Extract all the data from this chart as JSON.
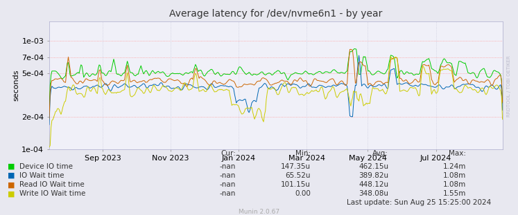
{
  "title": "Average latency for /dev/nvme6n1 - by year",
  "ylabel": "seconds",
  "outer_bg": "#e8e8f0",
  "plot_bg": "#f0f0f8",
  "grid_color_h": "#ff9999",
  "grid_color_v": "#ccccdd",
  "colors": {
    "device_io": "#00cc00",
    "io_wait": "#0066b3",
    "read_io_wait": "#cc6600",
    "write_io_wait": "#cccc00"
  },
  "ymin": 0.0001,
  "ymax": 0.0015,
  "yticks": [
    0.0001,
    0.0002,
    0.0005,
    0.0007,
    0.001
  ],
  "legend": [
    {
      "label": "Device IO time",
      "color": "#00cc00"
    },
    {
      "label": "IO Wait time",
      "color": "#0066b3"
    },
    {
      "label": "Read IO Wait time",
      "color": "#cc6600"
    },
    {
      "label": "Write IO Wait time",
      "color": "#cccc00"
    }
  ],
  "stats": [
    {
      "cur": "-nan",
      "min": "147.35u",
      "avg": "462.15u",
      "max": "1.24m"
    },
    {
      "cur": "-nan",
      "min": "65.52u",
      "avg": "389.82u",
      "max": "1.08m"
    },
    {
      "cur": "-nan",
      "min": "101.15u",
      "avg": "448.12u",
      "max": "1.08m"
    },
    {
      "cur": "-nan",
      "min": "0.00",
      "avg": "348.08u",
      "max": "1.55m"
    }
  ],
  "last_update": "Last update: Sun Aug 25 15:25:00 2024",
  "munin_version": "Munin 2.0.67",
  "watermark": "RRDTOOL / TOBI OETIKER",
  "x_tick_dates": [
    "Sep 2023",
    "Nov 2023",
    "Jan 2024",
    "Mar 2024",
    "May 2024",
    "Jul 2024"
  ],
  "x_tick_positions": [
    0.118,
    0.268,
    0.418,
    0.568,
    0.703,
    0.853
  ]
}
